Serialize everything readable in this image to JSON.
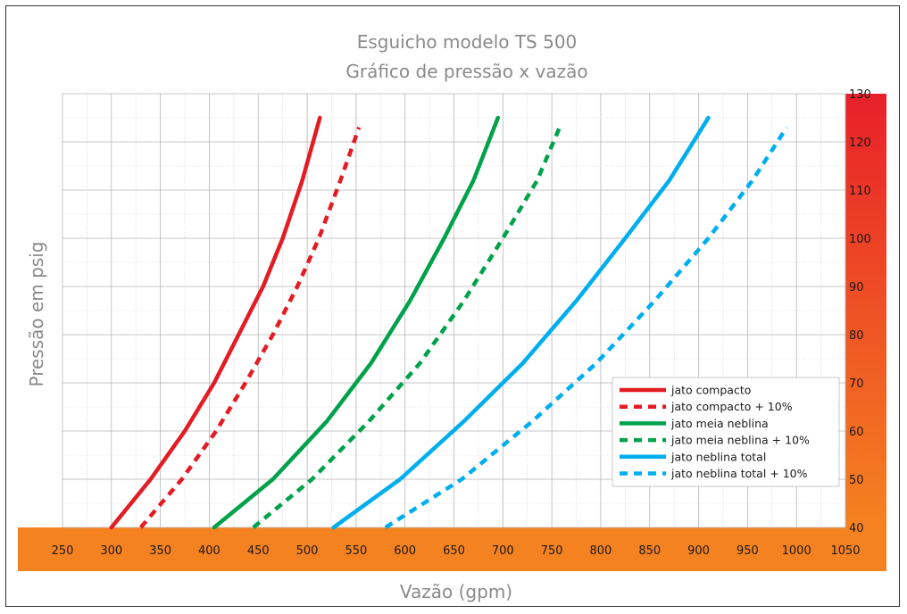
{
  "chart_data": {
    "type": "line",
    "title": "Esguicho modelo TS 500",
    "subtitle": "Gráfico de pressão x vazão",
    "xlabel": "Vazão (gpm)",
    "ylabel": "Pressão em psig",
    "xlim": [
      250,
      1050
    ],
    "ylim": [
      40,
      130
    ],
    "x_ticks": [
      250,
      300,
      350,
      400,
      450,
      500,
      550,
      600,
      650,
      700,
      750,
      800,
      850,
      900,
      950,
      1000,
      1050
    ],
    "y_ticks": [
      40,
      50,
      60,
      70,
      80,
      90,
      100,
      110,
      120,
      130
    ],
    "grid": true,
    "legend_position": "right",
    "series": [
      {
        "name": "jato compacto",
        "color": "#e31b23",
        "dashed": false,
        "x": [
          300,
          340,
          375,
          405,
          430,
          455,
          475,
          495,
          513
        ],
        "y": [
          40,
          50,
          60,
          70,
          80,
          90,
          100,
          112,
          125
        ]
      },
      {
        "name": "jato compacto + 10%",
        "color": "#e31b23",
        "dashed": true,
        "x": [
          330,
          372,
          407,
          437,
          465,
          490,
          512,
          534,
          553
        ],
        "y": [
          40,
          50,
          60,
          70,
          80,
          90,
          100,
          112,
          123
        ]
      },
      {
        "name": "jato meia neblina",
        "color": "#00a14b",
        "dashed": false,
        "x": [
          405,
          465,
          520,
          565,
          605,
          640,
          670,
          695
        ],
        "y": [
          40,
          50,
          62,
          74,
          87,
          100,
          112,
          125
        ]
      },
      {
        "name": "jato meia neblina + 10%",
        "color": "#00a14b",
        "dashed": true,
        "x": [
          445,
          505,
          563,
          615,
          660,
          700,
          735,
          758
        ],
        "y": [
          40,
          50,
          62,
          74,
          87,
          100,
          112,
          123
        ]
      },
      {
        "name": "jato neblina total",
        "color": "#00aeef",
        "dashed": false,
        "x": [
          527,
          595,
          660,
          720,
          775,
          825,
          870,
          910
        ],
        "y": [
          40,
          50,
          62,
          74,
          87,
          100,
          112,
          125
        ]
      },
      {
        "name": "jato neblina total + 10%",
        "color": "#00aeef",
        "dashed": true,
        "x": [
          580,
          658,
          730,
          795,
          855,
          910,
          955,
          990
        ],
        "y": [
          40,
          50,
          62,
          74,
          87,
          100,
          112,
          123
        ]
      }
    ]
  }
}
